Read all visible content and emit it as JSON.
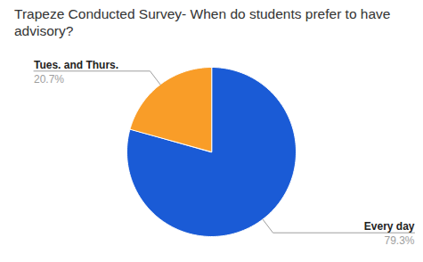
{
  "chart_data": {
    "type": "pie",
    "title": "Trapeze Conducted Survey- When do students prefer to have advisory?",
    "categories": [
      "Every day",
      "Tues. and Thurs."
    ],
    "values": [
      79.3,
      20.7
    ],
    "value_labels": [
      "79.3%",
      "20.7%"
    ],
    "colors": [
      "#1a5bd6",
      "#f99d28"
    ],
    "data_labels": true
  }
}
